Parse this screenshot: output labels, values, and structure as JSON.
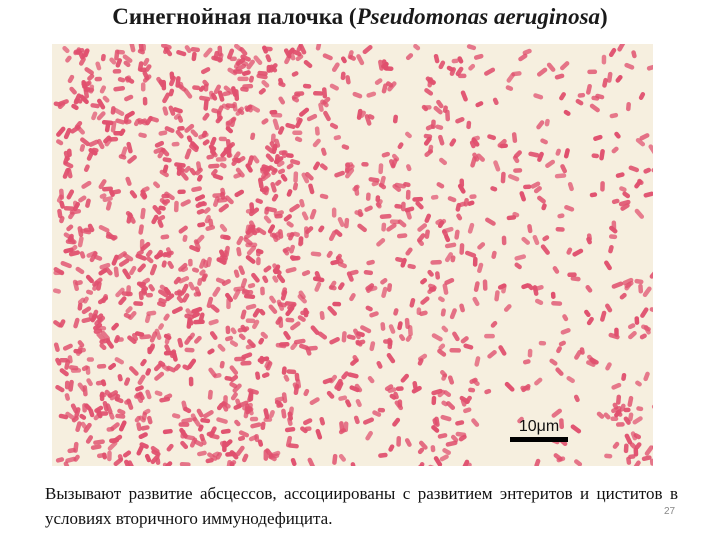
{
  "slide": {
    "title_prefix": "Синегнойная палочка (",
    "title_italic": "Pseudomonas aeruginosa",
    "title_suffix": ")",
    "image": {
      "subject": "micrograph",
      "scale_bar_label": "10μm",
      "cell_color": "#e0506e",
      "background_color": "#f6efdf"
    },
    "body_text": "Вызывают развитие абсцессов, ассоциированы с развитием энтеритов и циститов в условиях вторичного иммунодефицита.",
    "page_number": "27"
  }
}
